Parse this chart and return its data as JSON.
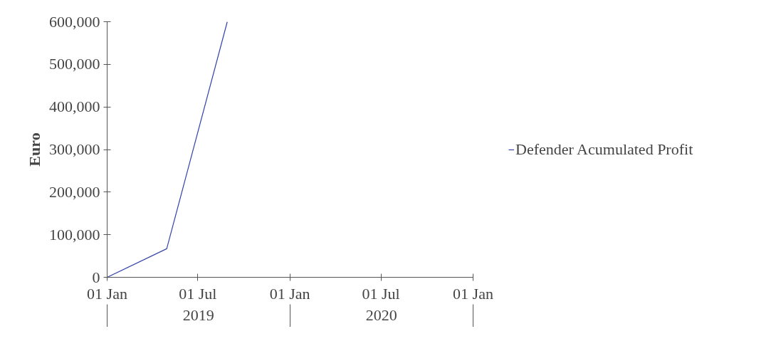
{
  "chart_data": {
    "type": "line",
    "ylabel": "Euro",
    "x": [
      "2019-01-01",
      "2019-04-30",
      "2019-08-29"
    ],
    "series": [
      {
        "name": "Defender Acumulated Profit",
        "color": "#3344aa",
        "values": [
          0,
          67000,
          600000
        ]
      }
    ],
    "xlim": [
      "2019-01-01",
      "2021-01-01"
    ],
    "xticks": [
      {
        "value": "2019-01-01",
        "label": "01 Jan"
      },
      {
        "value": "2019-07-01",
        "label": "01 Jul"
      },
      {
        "value": "2020-01-01",
        "label": "01 Jan"
      },
      {
        "value": "2020-07-01",
        "label": "01 Jul"
      },
      {
        "value": "2021-01-01",
        "label": "01 Jan"
      }
    ],
    "ylim": [
      0,
      600000
    ],
    "yticks": [
      {
        "value": 0,
        "label": "0"
      },
      {
        "value": 100000,
        "label": "100,000"
      },
      {
        "value": 200000,
        "label": "200,000"
      },
      {
        "value": 300000,
        "label": "300,000"
      },
      {
        "value": 400000,
        "label": "400,000"
      },
      {
        "value": 500000,
        "label": "500,000"
      },
      {
        "value": 600000,
        "label": "600,000"
      }
    ],
    "annotations": [
      "2019",
      "2020"
    ],
    "legend": "right",
    "marker": "none",
    "line_style": "solid"
  }
}
